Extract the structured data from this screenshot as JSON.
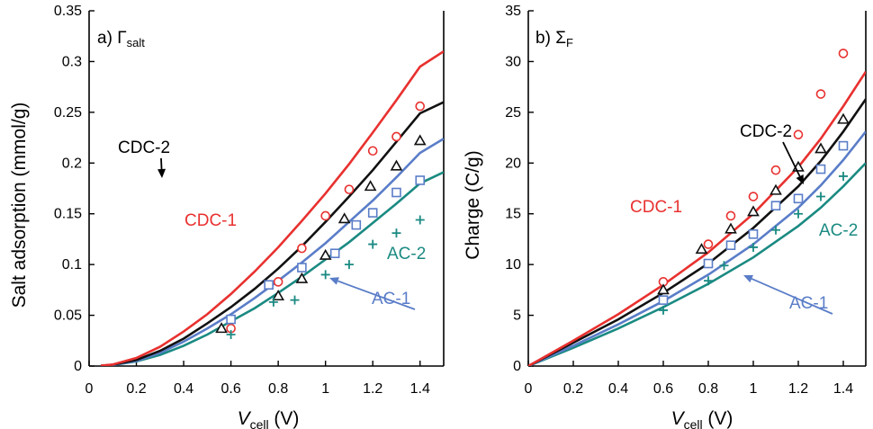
{
  "chart_data": [
    {
      "type": "scatter",
      "title_prefix": "a) ",
      "title_symbol": "Γ",
      "title_sub": "salt",
      "xlabel_main": "V",
      "xlabel_sub": "cell",
      "xlabel_unit": " (V)",
      "ylabel": "Salt adsorption (mmol/g)",
      "xlim": [
        0,
        1.5
      ],
      "ylim": [
        0,
        0.35
      ],
      "xticks": [
        "0",
        "0.2",
        "0.4",
        "0.6",
        "0.8",
        "1",
        "1.2",
        "1.4"
      ],
      "yticks": [
        "0",
        "0.05",
        "0.1",
        "0.15",
        "0.2",
        "0.25",
        "0.3",
        "0.35"
      ],
      "series": [
        {
          "name": "CDC-1",
          "color": "#e8312f",
          "marker": "circle",
          "points": [
            [
              0.6,
              0.037
            ],
            [
              0.8,
              0.083
            ],
            [
              0.9,
              0.116
            ],
            [
              1.0,
              0.148
            ],
            [
              1.1,
              0.174
            ],
            [
              1.2,
              0.212
            ],
            [
              1.3,
              0.226
            ],
            [
              1.4,
              0.256
            ]
          ],
          "curve": [
            [
              0.05,
              0.0004
            ],
            [
              0.1,
              0.0015
            ],
            [
              0.2,
              0.008
            ],
            [
              0.3,
              0.019
            ],
            [
              0.4,
              0.034
            ],
            [
              0.5,
              0.051
            ],
            [
              0.6,
              0.071
            ],
            [
              0.7,
              0.093
            ],
            [
              0.8,
              0.117
            ],
            [
              0.9,
              0.143
            ],
            [
              1.0,
              0.17
            ],
            [
              1.1,
              0.199
            ],
            [
              1.2,
              0.23
            ],
            [
              1.3,
              0.262
            ],
            [
              1.4,
              0.295
            ],
            [
              1.5,
              0.31
            ]
          ]
        },
        {
          "name": "CDC-2",
          "color": "#111111",
          "marker": "triangle",
          "points": [
            [
              0.56,
              0.037
            ],
            [
              0.8,
              0.069
            ],
            [
              0.9,
              0.086
            ],
            [
              1.0,
              0.109
            ],
            [
              1.08,
              0.145
            ],
            [
              1.19,
              0.177
            ],
            [
              1.3,
              0.197
            ],
            [
              1.4,
              0.222
            ]
          ],
          "curve": [
            [
              0.05,
              0.0003
            ],
            [
              0.1,
              0.0013
            ],
            [
              0.2,
              0.006
            ],
            [
              0.3,
              0.015
            ],
            [
              0.4,
              0.027
            ],
            [
              0.5,
              0.042
            ],
            [
              0.6,
              0.058
            ],
            [
              0.7,
              0.076
            ],
            [
              0.8,
              0.096
            ],
            [
              0.9,
              0.118
            ],
            [
              1.0,
              0.142
            ],
            [
              1.1,
              0.167
            ],
            [
              1.2,
              0.193
            ],
            [
              1.3,
              0.221
            ],
            [
              1.4,
              0.249
            ],
            [
              1.5,
              0.26
            ]
          ]
        },
        {
          "name": "AC-1",
          "color": "#5a7dc8",
          "marker": "square",
          "points": [
            [
              0.6,
              0.046
            ],
            [
              0.76,
              0.08
            ],
            [
              0.9,
              0.097
            ],
            [
              1.04,
              0.111
            ],
            [
              1.13,
              0.139
            ],
            [
              1.2,
              0.151
            ],
            [
              1.3,
              0.171
            ],
            [
              1.4,
              0.183
            ]
          ],
          "curve": [
            [
              0.05,
              0.0003
            ],
            [
              0.1,
              0.0011
            ],
            [
              0.2,
              0.005
            ],
            [
              0.3,
              0.013
            ],
            [
              0.4,
              0.024
            ],
            [
              0.5,
              0.037
            ],
            [
              0.6,
              0.051
            ],
            [
              0.7,
              0.067
            ],
            [
              0.8,
              0.084
            ],
            [
              0.9,
              0.102
            ],
            [
              1.0,
              0.121
            ],
            [
              1.1,
              0.142
            ],
            [
              1.2,
              0.163
            ],
            [
              1.3,
              0.186
            ],
            [
              1.4,
              0.21
            ],
            [
              1.5,
              0.224
            ]
          ]
        },
        {
          "name": "AC-2",
          "color": "#1a8a82",
          "marker": "plus",
          "points": [
            [
              0.6,
              0.031
            ],
            [
              0.78,
              0.063
            ],
            [
              0.87,
              0.065
            ],
            [
              1.0,
              0.09
            ],
            [
              1.1,
              0.1
            ],
            [
              1.2,
              0.12
            ],
            [
              1.3,
              0.131
            ],
            [
              1.4,
              0.144
            ]
          ],
          "curve": [
            [
              0.05,
              0.0002
            ],
            [
              0.1,
              0.001
            ],
            [
              0.2,
              0.0045
            ],
            [
              0.3,
              0.011
            ],
            [
              0.4,
              0.02
            ],
            [
              0.5,
              0.031
            ],
            [
              0.6,
              0.044
            ],
            [
              0.7,
              0.057
            ],
            [
              0.8,
              0.072
            ],
            [
              0.9,
              0.088
            ],
            [
              1.0,
              0.105
            ],
            [
              1.1,
              0.122
            ],
            [
              1.2,
              0.141
            ],
            [
              1.3,
              0.16
            ],
            [
              1.4,
              0.18
            ],
            [
              1.5,
              0.191
            ]
          ]
        }
      ]
    },
    {
      "type": "scatter",
      "title_prefix": "b) ",
      "title_symbol": "Σ",
      "title_sub": "F",
      "xlabel_main": "V",
      "xlabel_sub": "cell",
      "xlabel_unit": " (V)",
      "ylabel": "Charge (C/g)",
      "xlim": [
        0,
        1.5
      ],
      "ylim": [
        0,
        35
      ],
      "xticks": [
        "0",
        "0.2",
        "0.4",
        "0.6",
        "0.8",
        "1",
        "1.2",
        "1.4"
      ],
      "yticks": [
        "0",
        "5",
        "10",
        "15",
        "20",
        "25",
        "30",
        "35"
      ],
      "series": [
        {
          "name": "CDC-1",
          "color": "#e8312f",
          "marker": "circle",
          "points": [
            [
              0.6,
              8.3
            ],
            [
              0.8,
              12.0
            ],
            [
              0.9,
              14.8
            ],
            [
              1.0,
              16.7
            ],
            [
              1.1,
              19.3
            ],
            [
              1.2,
              22.8
            ],
            [
              1.3,
              26.8
            ],
            [
              1.4,
              30.8
            ]
          ],
          "curve": [
            [
              0,
              0
            ],
            [
              0.2,
              2.5
            ],
            [
              0.4,
              5.1
            ],
            [
              0.6,
              8.0
            ],
            [
              0.8,
              11.2
            ],
            [
              1.0,
              15.0
            ],
            [
              1.2,
              19.6
            ],
            [
              1.3,
              22.4
            ],
            [
              1.4,
              25.6
            ],
            [
              1.5,
              29.0
            ]
          ]
        },
        {
          "name": "CDC-2",
          "color": "#111111",
          "marker": "triangle",
          "points": [
            [
              0.6,
              7.5
            ],
            [
              0.77,
              11.5
            ],
            [
              0.9,
              13.5
            ],
            [
              1.0,
              15.2
            ],
            [
              1.1,
              17.3
            ],
            [
              1.2,
              19.6
            ],
            [
              1.3,
              21.4
            ],
            [
              1.4,
              24.3
            ]
          ],
          "curve": [
            [
              0,
              0
            ],
            [
              0.2,
              2.3
            ],
            [
              0.4,
              4.6
            ],
            [
              0.6,
              7.2
            ],
            [
              0.8,
              10.1
            ],
            [
              1.0,
              13.6
            ],
            [
              1.2,
              17.7
            ],
            [
              1.3,
              20.2
            ],
            [
              1.4,
              23.1
            ],
            [
              1.5,
              26.3
            ]
          ]
        },
        {
          "name": "AC-1",
          "color": "#5a7dc8",
          "marker": "square",
          "points": [
            [
              0.6,
              6.5
            ],
            [
              0.8,
              10.1
            ],
            [
              0.9,
              11.9
            ],
            [
              1.0,
              13.0
            ],
            [
              1.1,
              15.8
            ],
            [
              1.2,
              16.5
            ],
            [
              1.3,
              19.4
            ],
            [
              1.4,
              21.7
            ]
          ],
          "curve": [
            [
              0,
              0
            ],
            [
              0.2,
              2.0
            ],
            [
              0.4,
              4.1
            ],
            [
              0.6,
              6.4
            ],
            [
              0.8,
              9.0
            ],
            [
              1.0,
              12.0
            ],
            [
              1.2,
              15.6
            ],
            [
              1.3,
              17.8
            ],
            [
              1.4,
              20.3
            ],
            [
              1.5,
              23.1
            ]
          ]
        },
        {
          "name": "AC-2",
          "color": "#1a8a82",
          "marker": "plus",
          "points": [
            [
              0.6,
              5.5
            ],
            [
              0.8,
              8.4
            ],
            [
              0.87,
              9.9
            ],
            [
              1.0,
              11.7
            ],
            [
              1.1,
              13.4
            ],
            [
              1.2,
              15.0
            ],
            [
              1.3,
              16.7
            ],
            [
              1.4,
              18.7
            ]
          ],
          "curve": [
            [
              0,
              0
            ],
            [
              0.2,
              1.8
            ],
            [
              0.4,
              3.7
            ],
            [
              0.6,
              5.8
            ],
            [
              0.8,
              8.1
            ],
            [
              1.0,
              10.7
            ],
            [
              1.2,
              13.8
            ],
            [
              1.3,
              15.6
            ],
            [
              1.4,
              17.7
            ],
            [
              1.5,
              20.0
            ]
          ]
        }
      ]
    }
  ]
}
